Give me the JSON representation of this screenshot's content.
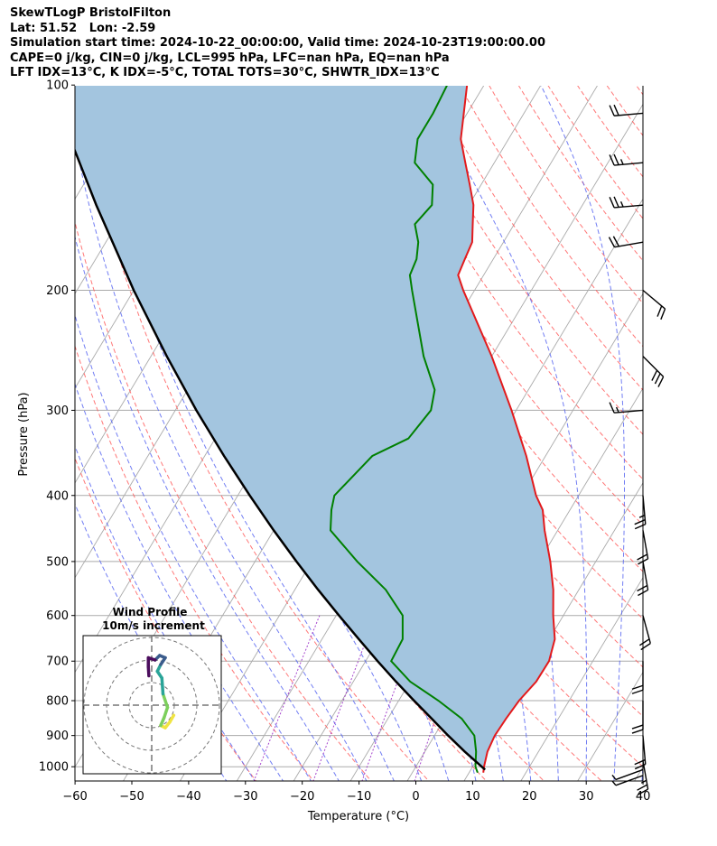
{
  "header": {
    "line1": "SkewTLogP BristolFilton",
    "line2": "Lat: 51.52   Lon: -2.59",
    "line3": "Simulation start time: 2024-10-22_00:00:00, Valid time: 2024-10-23T19:00:00.00",
    "line4": "CAPE=0 j/kg, CIN=0 j/kg, LCL=995 hPa, LFC=nan hPa, EQ=nan hPa",
    "line5": "LFT IDX=13°C, K IDX=-5°C, TOTAL TOTS=30°C, SHWTR_IDX=13°C"
  },
  "chart_data": {
    "type": "skewt",
    "xlabel": "Temperature (°C)",
    "ylabel": "Pressure (hPa)",
    "xlim": [
      -60,
      40
    ],
    "ylim": [
      1050,
      100
    ],
    "x_ticks": [
      -60,
      -50,
      -40,
      -30,
      -20,
      -10,
      0,
      10,
      20,
      30,
      40
    ],
    "x_tick_labels": [
      "−60",
      "−50",
      "−40",
      "−30",
      "−20",
      "−10",
      "0",
      "10",
      "20",
      "30",
      "40"
    ],
    "y_ticks": [
      1000,
      900,
      800,
      700,
      600,
      500,
      400,
      300,
      200,
      100
    ],
    "y_tick_labels": [
      "1000",
      "900",
      "800",
      "700",
      "600",
      "500",
      "400",
      "300",
      "200",
      "100"
    ],
    "grid": true,
    "colors": {
      "temperature": "#e31a1c",
      "dewpoint": "#008000",
      "parcel": "#000000",
      "shading": "#a3c5df",
      "dry_adiabats": "#ff5555",
      "moist_adiabats": "#4f5ef0",
      "isotherms": "#aaaaaa",
      "mixing_ratio": "#9b30c8"
    },
    "temperature_profile": [
      {
        "p": 1020,
        "t": 12.5
      },
      {
        "p": 1000,
        "t": 12.0
      },
      {
        "p": 950,
        "t": 11.0
      },
      {
        "p": 900,
        "t": 10.6
      },
      {
        "p": 850,
        "t": 10.8
      },
      {
        "p": 800,
        "t": 11.2
      },
      {
        "p": 750,
        "t": 12.2
      },
      {
        "p": 700,
        "t": 12.3
      },
      {
        "p": 650,
        "t": 11.0
      },
      {
        "p": 600,
        "t": 8.2
      },
      {
        "p": 550,
        "t": 5.5
      },
      {
        "p": 500,
        "t": 2.0
      },
      {
        "p": 450,
        "t": -2.3
      },
      {
        "p": 420,
        "t": -4.8
      },
      {
        "p": 400,
        "t": -7.5
      },
      {
        "p": 350,
        "t": -13.4
      },
      {
        "p": 300,
        "t": -20.8
      },
      {
        "p": 250,
        "t": -30.0
      },
      {
        "p": 200,
        "t": -42.0
      },
      {
        "p": 190,
        "t": -44.5
      },
      {
        "p": 180,
        "t": -45.0
      },
      {
        "p": 170,
        "t": -45.5
      },
      {
        "p": 160,
        "t": -47.3
      },
      {
        "p": 150,
        "t": -49.2
      },
      {
        "p": 140,
        "t": -52.0
      },
      {
        "p": 130,
        "t": -55.1
      },
      {
        "p": 120,
        "t": -58.4
      },
      {
        "p": 110,
        "t": -60.6
      },
      {
        "p": 100,
        "t": -63.0
      }
    ],
    "dewpoint_profile": [
      {
        "p": 1020,
        "td": 11.5
      },
      {
        "p": 1000,
        "td": 10.5
      },
      {
        "p": 950,
        "td": 9.0
      },
      {
        "p": 900,
        "td": 7.0
      },
      {
        "p": 850,
        "td": 3.0
      },
      {
        "p": 800,
        "td": -3.0
      },
      {
        "p": 750,
        "td": -10.0
      },
      {
        "p": 700,
        "td": -15.5
      },
      {
        "p": 650,
        "td": -15.8
      },
      {
        "p": 600,
        "td": -18.3
      },
      {
        "p": 550,
        "td": -24.0
      },
      {
        "p": 500,
        "td": -32.0
      },
      {
        "p": 450,
        "td": -40.0
      },
      {
        "p": 420,
        "td": -42.0
      },
      {
        "p": 400,
        "td": -43.0
      },
      {
        "p": 350,
        "td": -40.5
      },
      {
        "p": 330,
        "td": -36.0
      },
      {
        "p": 300,
        "td": -35.0
      },
      {
        "p": 280,
        "td": -36.5
      },
      {
        "p": 250,
        "td": -42.0
      },
      {
        "p": 200,
        "td": -51.0
      },
      {
        "p": 190,
        "td": -53.0
      },
      {
        "p": 180,
        "td": -53.5
      },
      {
        "p": 170,
        "td": -55.0
      },
      {
        "p": 160,
        "td": -57.5
      },
      {
        "p": 150,
        "td": -56.5
      },
      {
        "p": 140,
        "td": -58.5
      },
      {
        "p": 130,
        "td": -64.0
      },
      {
        "p": 120,
        "td": -66.0
      },
      {
        "p": 110,
        "td": -66.0
      },
      {
        "p": 100,
        "td": -66.5
      }
    ],
    "parcel_profile": [
      {
        "p": 1010,
        "t": 12.5
      },
      {
        "p": 1000,
        "t": 11.6
      },
      {
        "p": 950,
        "t": 7.0
      },
      {
        "p": 900,
        "t": 2.4
      },
      {
        "p": 850,
        "t": -2.3
      },
      {
        "p": 800,
        "t": -7.3
      },
      {
        "p": 750,
        "t": -12.5
      },
      {
        "p": 700,
        "t": -17.9
      },
      {
        "p": 650,
        "t": -23.5
      },
      {
        "p": 600,
        "t": -29.5
      },
      {
        "p": 550,
        "t": -35.9
      },
      {
        "p": 500,
        "t": -42.7
      },
      {
        "p": 450,
        "t": -50.0
      },
      {
        "p": 400,
        "t": -57.9
      },
      {
        "p": 350,
        "t": -66.6
      },
      {
        "p": 300,
        "t": -76.3
      },
      {
        "p": 250,
        "t": -87.2
      },
      {
        "p": 200,
        "t": -100.0
      },
      {
        "p": 150,
        "t": -115.6
      },
      {
        "p": 100,
        "t": -136.6
      }
    ],
    "wind_barbs": [
      {
        "p": 1030,
        "speed_kt": 5,
        "dir": 250
      },
      {
        "p": 1010,
        "speed_kt": 5,
        "dir": 250
      },
      {
        "p": 980,
        "speed_kt": 25,
        "dir": 170
      },
      {
        "p": 900,
        "speed_kt": 20,
        "dir": 175
      },
      {
        "p": 800,
        "speed_kt": 20,
        "dir": 180
      },
      {
        "p": 700,
        "speed_kt": 20,
        "dir": 180
      },
      {
        "p": 600,
        "speed_kt": 20,
        "dir": 165
      },
      {
        "p": 500,
        "speed_kt": 20,
        "dir": 170
      },
      {
        "p": 450,
        "speed_kt": 20,
        "dir": 170
      },
      {
        "p": 400,
        "speed_kt": 25,
        "dir": 175
      },
      {
        "p": 300,
        "speed_kt": 15,
        "dir": 265
      },
      {
        "p": 250,
        "speed_kt": 30,
        "dir": 135
      },
      {
        "p": 200,
        "speed_kt": 20,
        "dir": 130
      },
      {
        "p": 170,
        "speed_kt": 20,
        "dir": 260
      },
      {
        "p": 150,
        "speed_kt": 25,
        "dir": 265
      },
      {
        "p": 130,
        "speed_kt": 25,
        "dir": 265
      },
      {
        "p": 110,
        "speed_kt": 20,
        "dir": 265
      }
    ],
    "hodograph": {
      "title": "Wind Profile",
      "subtitle": "10m/s increment",
      "ring_step_ms": 10,
      "colormap": [
        "#f0e442",
        "#7ccf5c",
        "#2aa498",
        "#3b5c8c",
        "#4b0d5d"
      ],
      "points": [
        {
          "u": 3.9,
          "v": -1.8
        },
        {
          "u": 3.2,
          "v": -3.0
        },
        {
          "u": 2.4,
          "v": -4.0
        },
        {
          "u": 1.6,
          "v": -3.6
        },
        {
          "u": 2.2,
          "v": -2.2
        },
        {
          "u": 2.8,
          "v": -0.4
        },
        {
          "u": 2.0,
          "v": 2.0
        },
        {
          "u": 1.8,
          "v": 4.8
        },
        {
          "u": 1.0,
          "v": 6.0
        },
        {
          "u": 1.6,
          "v": 7.2
        },
        {
          "u": 2.4,
          "v": 8.4
        },
        {
          "u": 1.4,
          "v": 8.8
        },
        {
          "u": 0.6,
          "v": 8.0
        },
        {
          "u": -0.6,
          "v": 8.4
        },
        {
          "u": -0.6,
          "v": 6.8
        },
        {
          "u": -0.5,
          "v": 5.2
        }
      ]
    }
  }
}
